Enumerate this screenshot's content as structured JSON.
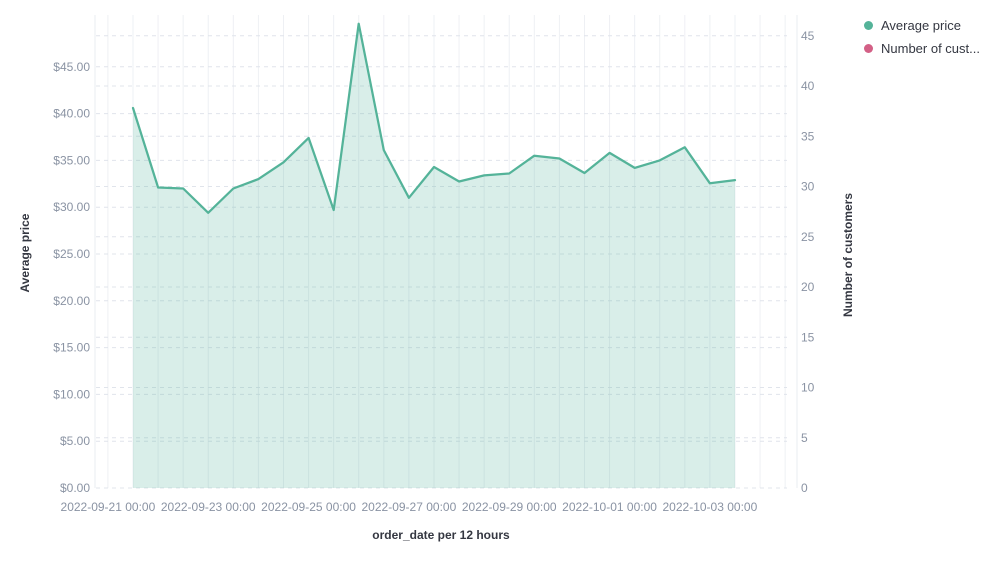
{
  "chart_data": {
    "type": "area",
    "title": "",
    "background": "#FFFFFF",
    "grid": true,
    "legend_position": "top-right",
    "x_axis": {
      "title": "order_date per 12 hours",
      "tick_labels": [
        "2022-09-21 00:00",
        "2022-09-23 00:00",
        "2022-09-25 00:00",
        "2022-09-27 00:00",
        "2022-09-29 00:00",
        "2022-10-01 00:00",
        "2022-10-03 00:00"
      ]
    },
    "left_axis": {
      "title": "Average price",
      "tick_labels": [
        "$0.00",
        "$5.00",
        "$10.00",
        "$15.00",
        "$20.00",
        "$25.00",
        "$30.00",
        "$35.00",
        "$40.00",
        "$45.00"
      ],
      "tick_values": [
        0,
        5,
        10,
        15,
        20,
        25,
        30,
        35,
        40,
        45
      ],
      "min": 0,
      "max": 50.5
    },
    "right_axis": {
      "title": "Number of customers",
      "tick_labels": [
        "0",
        "5",
        "10",
        "15",
        "20",
        "25",
        "30",
        "35",
        "40",
        "45"
      ],
      "tick_values": [
        0,
        5,
        10,
        15,
        20,
        25,
        30,
        35,
        40,
        45
      ],
      "min": 0,
      "max": 47
    },
    "x": [
      "2022-09-21 12:00",
      "2022-09-22 00:00",
      "2022-09-22 12:00",
      "2022-09-23 00:00",
      "2022-09-23 12:00",
      "2022-09-24 00:00",
      "2022-09-24 12:00",
      "2022-09-25 00:00",
      "2022-09-25 12:00",
      "2022-09-26 00:00",
      "2022-09-26 12:00",
      "2022-09-27 00:00",
      "2022-09-27 12:00",
      "2022-09-28 00:00",
      "2022-09-28 12:00",
      "2022-09-29 00:00",
      "2022-09-29 12:00",
      "2022-09-30 00:00",
      "2022-09-30 12:00",
      "2022-10-01 00:00",
      "2022-10-01 12:00",
      "2022-10-02 00:00",
      "2022-10-02 12:00",
      "2022-10-03 00:00",
      "2022-10-03 12:00"
    ],
    "series": [
      {
        "name": "Average price",
        "axis": "left",
        "color": "#54B399",
        "fill": "rgba(84,179,153,0.22)",
        "values": [
          40.6,
          32.1,
          32.0,
          29.4,
          32.0,
          33.0,
          34.8,
          37.4,
          29.7,
          49.6,
          36.1,
          31.0,
          34.3,
          32.75,
          33.4,
          33.6,
          35.5,
          35.2,
          33.65,
          35.8,
          34.2,
          35.0,
          36.4,
          32.55,
          32.9
        ]
      },
      {
        "name": "Number of customers",
        "axis": "right",
        "color": "#D36086",
        "values": []
      }
    ],
    "legend": [
      {
        "label": "Average price",
        "color": "#54B399"
      },
      {
        "label": "Number of cust...",
        "color": "#D36086"
      }
    ]
  }
}
